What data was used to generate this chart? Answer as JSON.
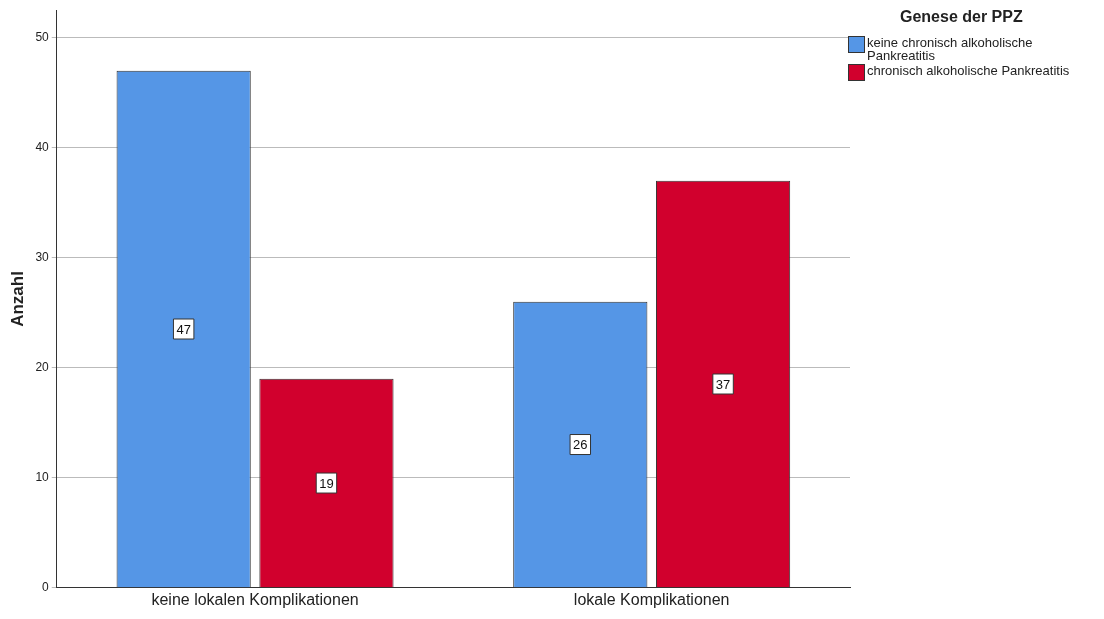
{
  "chart_data": {
    "type": "bar",
    "ylabel": "Anzahl",
    "legend_title": "Genese der PPZ",
    "categories": [
      "keine lokalen Komplikationen",
      "lokale Komplikationen"
    ],
    "series": [
      {
        "name": "keine chronisch alkoholische Pankreatitis",
        "color": "#5596e6",
        "values": [
          47,
          26
        ]
      },
      {
        "name": "chronisch alkoholische Pankreatitis",
        "color": "#d1002d",
        "values": [
          19,
          37
        ]
      }
    ],
    "ylim": [
      0,
      52.5
    ],
    "yticks": [
      0,
      10,
      20,
      30,
      40,
      50
    ],
    "grid": "y",
    "legend": "top right",
    "data_labels": true
  }
}
